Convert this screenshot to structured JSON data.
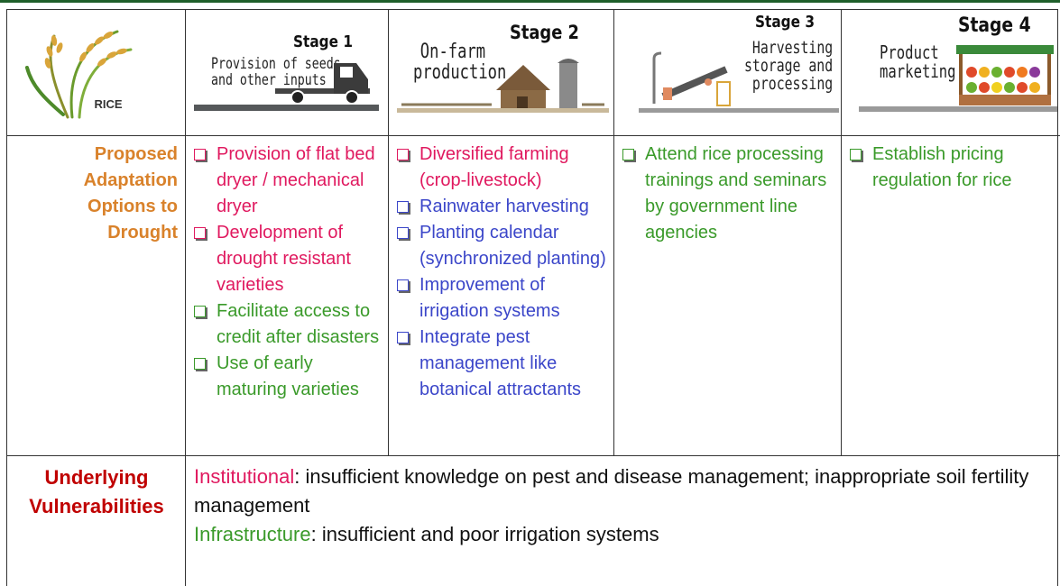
{
  "header": {
    "logo_label": "RICE",
    "stages": [
      {
        "stage": "Stage 1",
        "title_lines": [
          "Provision of seeds",
          "and other inputs"
        ]
      },
      {
        "stage": "Stage 2",
        "title_lines": [
          "On-farm",
          "production"
        ]
      },
      {
        "stage": "Stage 3",
        "title_lines": [
          "Harvesting",
          "storage and",
          "processing"
        ]
      },
      {
        "stage": "Stage 4",
        "title_lines": [
          "Product",
          "marketing"
        ]
      }
    ]
  },
  "adaptation": {
    "label": "Proposed Adaptation Options to Drought",
    "columns": [
      [
        {
          "text": "Provision of flat bed dryer / mechanical dryer",
          "color": "#e0195f"
        },
        {
          "text": "Development of drought resistant varieties",
          "color": "#e0195f"
        },
        {
          "text": "Facilitate access to credit after disasters",
          "color": "#3a9a2a"
        },
        {
          "text": "Use of early maturing varieties",
          "color": "#3a9a2a"
        }
      ],
      [
        {
          "text": "Diversified farming (crop-livestock)",
          "color": "#e0195f"
        },
        {
          "text": "Rainwater harvesting",
          "color": "#3b46c9"
        },
        {
          "text": "Planting calendar (synchronized planting)",
          "color": "#3b46c9"
        },
        {
          "text": "Improvement of irrigation systems",
          "color": "#3b46c9"
        },
        {
          "text": "Integrate pest management like botanical attractants",
          "color": "#3b46c9"
        }
      ],
      [
        {
          "text": "Attend rice processing trainings and seminars by government line agencies",
          "color": "#3a9a2a"
        }
      ],
      [
        {
          "text": "Establish pricing regulation for rice",
          "color": "#3a9a2a"
        }
      ]
    ]
  },
  "vulnerabilities": {
    "label": "Underlying Vulnerabilities",
    "items": [
      {
        "category": "Institutional",
        "color": "#e0195f",
        "text": ": insufficient knowledge on pest and disease management; inappropriate soil fertility management"
      },
      {
        "category": "Infrastructure",
        "color": "#3a9a2a",
        "text": ": insufficient and poor irrigation systems"
      }
    ]
  }
}
